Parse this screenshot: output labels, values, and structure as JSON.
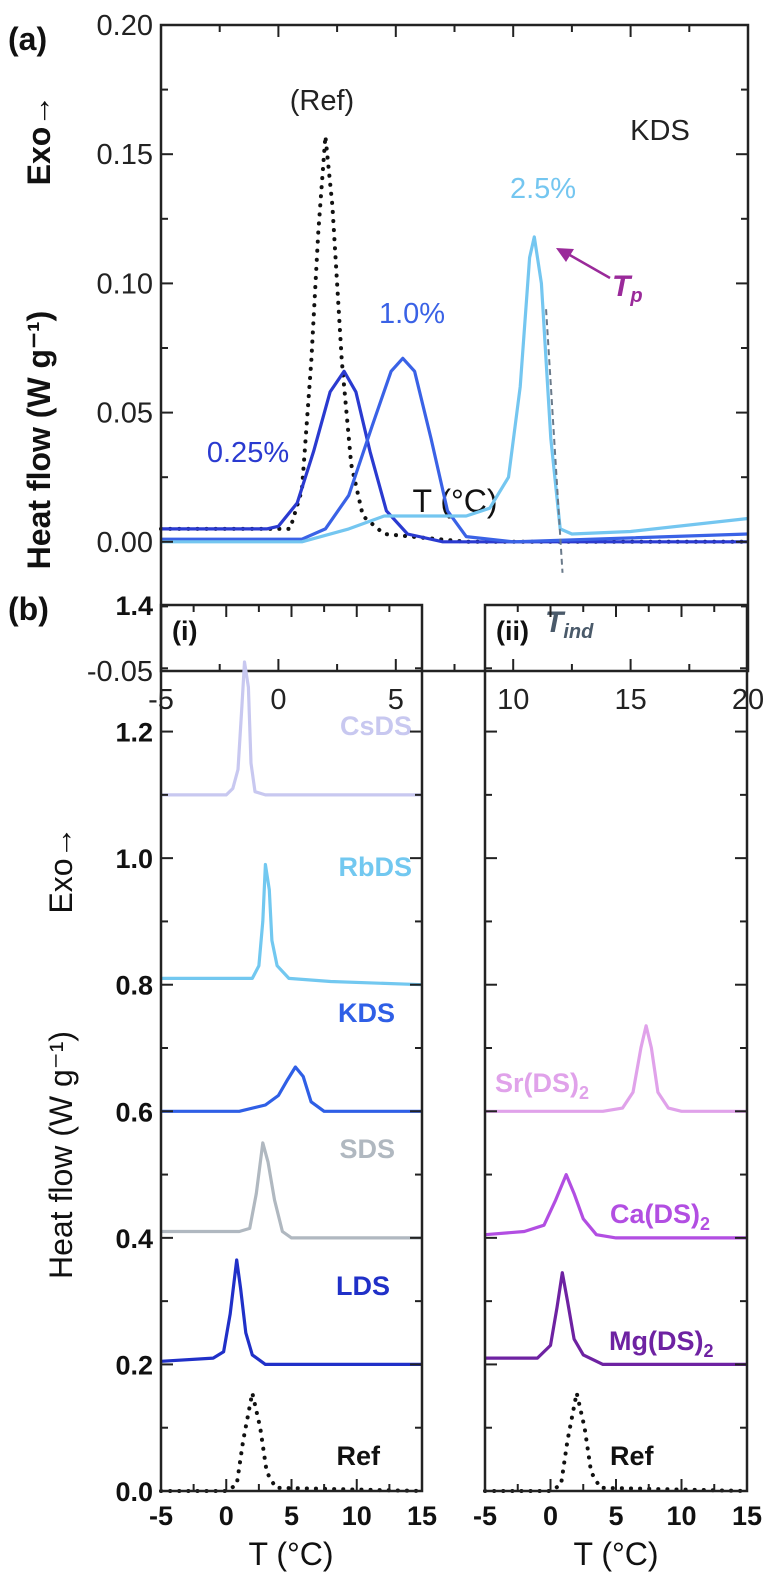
{
  "chart_data": [
    {
      "panel_label": "(a)",
      "type": "line",
      "xlabel": "T (°C)",
      "ylabel": "Heat flow (W g⁻¹)",
      "ylabel_extra": "Exo→",
      "xlim": [
        -5,
        20
      ],
      "ylim": [
        -0.05,
        0.2
      ],
      "xticks": [
        -5,
        0,
        5,
        10,
        15,
        20
      ],
      "xtick_labels": [
        "-5",
        "0",
        "5",
        "10",
        "15",
        "20"
      ],
      "yticks": [
        -0.05,
        0,
        0.05,
        0.1,
        0.15,
        0.2
      ],
      "ytick_labels": [
        "-0.05",
        "0.00",
        "0.05",
        "0.10",
        "0.15",
        "0.20"
      ],
      "grid": false,
      "annotations": {
        "sample": "KDS",
        "ref": "(Ref)",
        "tp": "T",
        "tp_sub": "p",
        "tind": "T",
        "tind_sub": "ind",
        "tp_color": "#9a2a9a",
        "tind_color": "#4a5a6a"
      },
      "series": [
        {
          "name": "(Ref)",
          "color": "#111111",
          "style": "dotted",
          "points": [
            [
              -5,
              0.005
            ],
            [
              -1,
              0.005
            ],
            [
              0.5,
              0.005
            ],
            [
              1,
              0.02
            ],
            [
              1.4,
              0.07
            ],
            [
              1.7,
              0.12
            ],
            [
              2,
              0.157
            ],
            [
              2.3,
              0.13
            ],
            [
              2.7,
              0.07
            ],
            [
              3.1,
              0.03
            ],
            [
              3.6,
              0.01
            ],
            [
              4.5,
              0.003
            ],
            [
              8,
              0
            ],
            [
              20,
              0
            ]
          ]
        },
        {
          "name": "0.25%",
          "color": "#2a3ad0",
          "style": "solid",
          "points": [
            [
              -5,
              0.005
            ],
            [
              -0.5,
              0.005
            ],
            [
              0,
              0.006
            ],
            [
              0.8,
              0.015
            ],
            [
              1.5,
              0.035
            ],
            [
              2.2,
              0.058
            ],
            [
              2.8,
              0.066
            ],
            [
              3.3,
              0.058
            ],
            [
              3.9,
              0.035
            ],
            [
              4.6,
              0.012
            ],
            [
              5.5,
              0.003
            ],
            [
              7,
              0
            ],
            [
              20,
              0
            ]
          ]
        },
        {
          "name": "1.0%",
          "color": "#3a62e6",
          "style": "solid",
          "points": [
            [
              -5,
              0.001
            ],
            [
              1,
              0.001
            ],
            [
              2,
              0.005
            ],
            [
              3,
              0.018
            ],
            [
              4,
              0.045
            ],
            [
              4.8,
              0.066
            ],
            [
              5.3,
              0.071
            ],
            [
              5.8,
              0.066
            ],
            [
              6.5,
              0.04
            ],
            [
              7.2,
              0.012
            ],
            [
              8,
              0.002
            ],
            [
              10,
              0
            ],
            [
              20,
              0.003
            ]
          ]
        },
        {
          "name": "2.5%",
          "color": "#74c6f0",
          "style": "solid",
          "points": [
            [
              -5,
              0
            ],
            [
              1,
              0
            ],
            [
              3,
              0.005
            ],
            [
              4.5,
              0.01
            ],
            [
              6,
              0.01
            ],
            [
              8,
              0.01
            ],
            [
              9,
              0.013
            ],
            [
              9.8,
              0.025
            ],
            [
              10.3,
              0.06
            ],
            [
              10.7,
              0.11
            ],
            [
              10.9,
              0.118
            ],
            [
              11.2,
              0.1
            ],
            [
              11.6,
              0.04
            ],
            [
              12,
              0.005
            ],
            [
              12.5,
              0.003
            ],
            [
              15,
              0.004
            ],
            [
              20,
              0.009
            ]
          ]
        }
      ]
    },
    {
      "panel_label": "(b)",
      "subpanel_label": "(i)",
      "type": "line",
      "xlabel": "T (°C)",
      "ylabel": "Heat flow (W g⁻¹)",
      "ylabel_extra": "Exo→",
      "xlim": [
        -5,
        15
      ],
      "ylim": [
        0,
        1.4
      ],
      "xticks": [
        -5,
        0,
        5,
        10,
        15
      ],
      "xtick_labels": [
        "-5",
        "0",
        "5",
        "10",
        "15"
      ],
      "yticks": [
        0,
        0.2,
        0.4,
        0.6,
        0.8,
        1.0,
        1.2,
        1.4
      ],
      "ytick_labels": [
        "0.0",
        "0.2",
        "0.4",
        "0.6",
        "0.8",
        "1.0",
        "1.2",
        "1.4"
      ],
      "grid": false,
      "series": [
        {
          "name": "CsDS",
          "color": "#c8c8f0",
          "style": "solid",
          "points": [
            [
              -5,
              1.1
            ],
            [
              0,
              1.1
            ],
            [
              0.5,
              1.11
            ],
            [
              0.9,
              1.14
            ],
            [
              1.2,
              1.24
            ],
            [
              1.4,
              1.31
            ],
            [
              1.7,
              1.27
            ],
            [
              1.9,
              1.15
            ],
            [
              2.2,
              1.105
            ],
            [
              3,
              1.1
            ],
            [
              15,
              1.1
            ]
          ]
        },
        {
          "name": "RbDS",
          "color": "#72c8f0",
          "style": "solid",
          "points": [
            [
              -5,
              0.81
            ],
            [
              2,
              0.81
            ],
            [
              2.5,
              0.83
            ],
            [
              2.8,
              0.9
            ],
            [
              3.0,
              0.99
            ],
            [
              3.3,
              0.95
            ],
            [
              3.5,
              0.87
            ],
            [
              3.9,
              0.83
            ],
            [
              4.8,
              0.81
            ],
            [
              8,
              0.805
            ],
            [
              15,
              0.8
            ]
          ]
        },
        {
          "name": "KDS",
          "color": "#2f5fe6",
          "style": "solid",
          "points": [
            [
              -5,
              0.6
            ],
            [
              1,
              0.6
            ],
            [
              3,
              0.61
            ],
            [
              4,
              0.625
            ],
            [
              4.7,
              0.65
            ],
            [
              5.3,
              0.67
            ],
            [
              5.9,
              0.655
            ],
            [
              6.5,
              0.615
            ],
            [
              7.5,
              0.6
            ],
            [
              15,
              0.6
            ]
          ]
        },
        {
          "name": "SDS",
          "color": "#b0b8c0",
          "style": "solid",
          "points": [
            [
              -5,
              0.41
            ],
            [
              1,
              0.41
            ],
            [
              1.8,
              0.415
            ],
            [
              2.3,
              0.47
            ],
            [
              2.8,
              0.55
            ],
            [
              3.2,
              0.52
            ],
            [
              3.7,
              0.46
            ],
            [
              4.3,
              0.41
            ],
            [
              5,
              0.4
            ],
            [
              15,
              0.4
            ]
          ]
        },
        {
          "name": "LDS",
          "color": "#2030c8",
          "style": "solid",
          "points": [
            [
              -5,
              0.205
            ],
            [
              -1,
              0.21
            ],
            [
              -0.2,
              0.22
            ],
            [
              0.3,
              0.28
            ],
            [
              0.8,
              0.365
            ],
            [
              1.1,
              0.32
            ],
            [
              1.5,
              0.25
            ],
            [
              2,
              0.215
            ],
            [
              3,
              0.2
            ],
            [
              15,
              0.2
            ]
          ]
        },
        {
          "name": "Ref",
          "color": "#111111",
          "style": "dotted",
          "points": [
            [
              -5,
              0
            ],
            [
              0,
              0
            ],
            [
              0.8,
              0.01
            ],
            [
              1.3,
              0.08
            ],
            [
              2,
              0.155
            ],
            [
              2.6,
              0.1
            ],
            [
              3.1,
              0.03
            ],
            [
              3.8,
              0.005
            ],
            [
              15,
              0
            ]
          ]
        }
      ]
    },
    {
      "subpanel_label": "(ii)",
      "type": "line",
      "xlabel": "T (°C)",
      "xlim": [
        -5,
        15
      ],
      "ylim": [
        0,
        1.4
      ],
      "xticks": [
        -5,
        0,
        5,
        10,
        15
      ],
      "xtick_labels": [
        "-5",
        "0",
        "5",
        "10",
        "15"
      ],
      "grid": false,
      "series": [
        {
          "name": "Sr(DS)",
          "subscript": "2",
          "color": "#e0a2ea",
          "style": "solid",
          "points": [
            [
              -5,
              0.6
            ],
            [
              4,
              0.6
            ],
            [
              5.5,
              0.605
            ],
            [
              6.3,
              0.63
            ],
            [
              6.9,
              0.7
            ],
            [
              7.3,
              0.735
            ],
            [
              7.7,
              0.7
            ],
            [
              8.2,
              0.63
            ],
            [
              9,
              0.605
            ],
            [
              10,
              0.6
            ],
            [
              15,
              0.6
            ]
          ]
        },
        {
          "name": "Ca(DS)",
          "subscript": "2",
          "color": "#b24ee2",
          "style": "solid",
          "points": [
            [
              -5,
              0.405
            ],
            [
              -2,
              0.41
            ],
            [
              -0.5,
              0.42
            ],
            [
              0.4,
              0.46
            ],
            [
              1.2,
              0.5
            ],
            [
              1.8,
              0.47
            ],
            [
              2.5,
              0.43
            ],
            [
              3.5,
              0.405
            ],
            [
              5,
              0.4
            ],
            [
              15,
              0.4
            ]
          ]
        },
        {
          "name": "Mg(DS)",
          "subscript": "2",
          "color": "#6e22a2",
          "style": "solid",
          "points": [
            [
              -5,
              0.21
            ],
            [
              -1,
              0.21
            ],
            [
              0,
              0.23
            ],
            [
              0.5,
              0.29
            ],
            [
              0.9,
              0.345
            ],
            [
              1.3,
              0.3
            ],
            [
              1.8,
              0.24
            ],
            [
              2.5,
              0.215
            ],
            [
              4,
              0.2
            ],
            [
              15,
              0.2
            ]
          ]
        },
        {
          "name": "Ref",
          "color": "#111111",
          "style": "dotted",
          "points": [
            [
              -5,
              0
            ],
            [
              0,
              0
            ],
            [
              0.8,
              0.01
            ],
            [
              1.3,
              0.08
            ],
            [
              2,
              0.155
            ],
            [
              2.6,
              0.1
            ],
            [
              3.1,
              0.03
            ],
            [
              3.8,
              0.005
            ],
            [
              15,
              0
            ]
          ]
        }
      ]
    }
  ]
}
